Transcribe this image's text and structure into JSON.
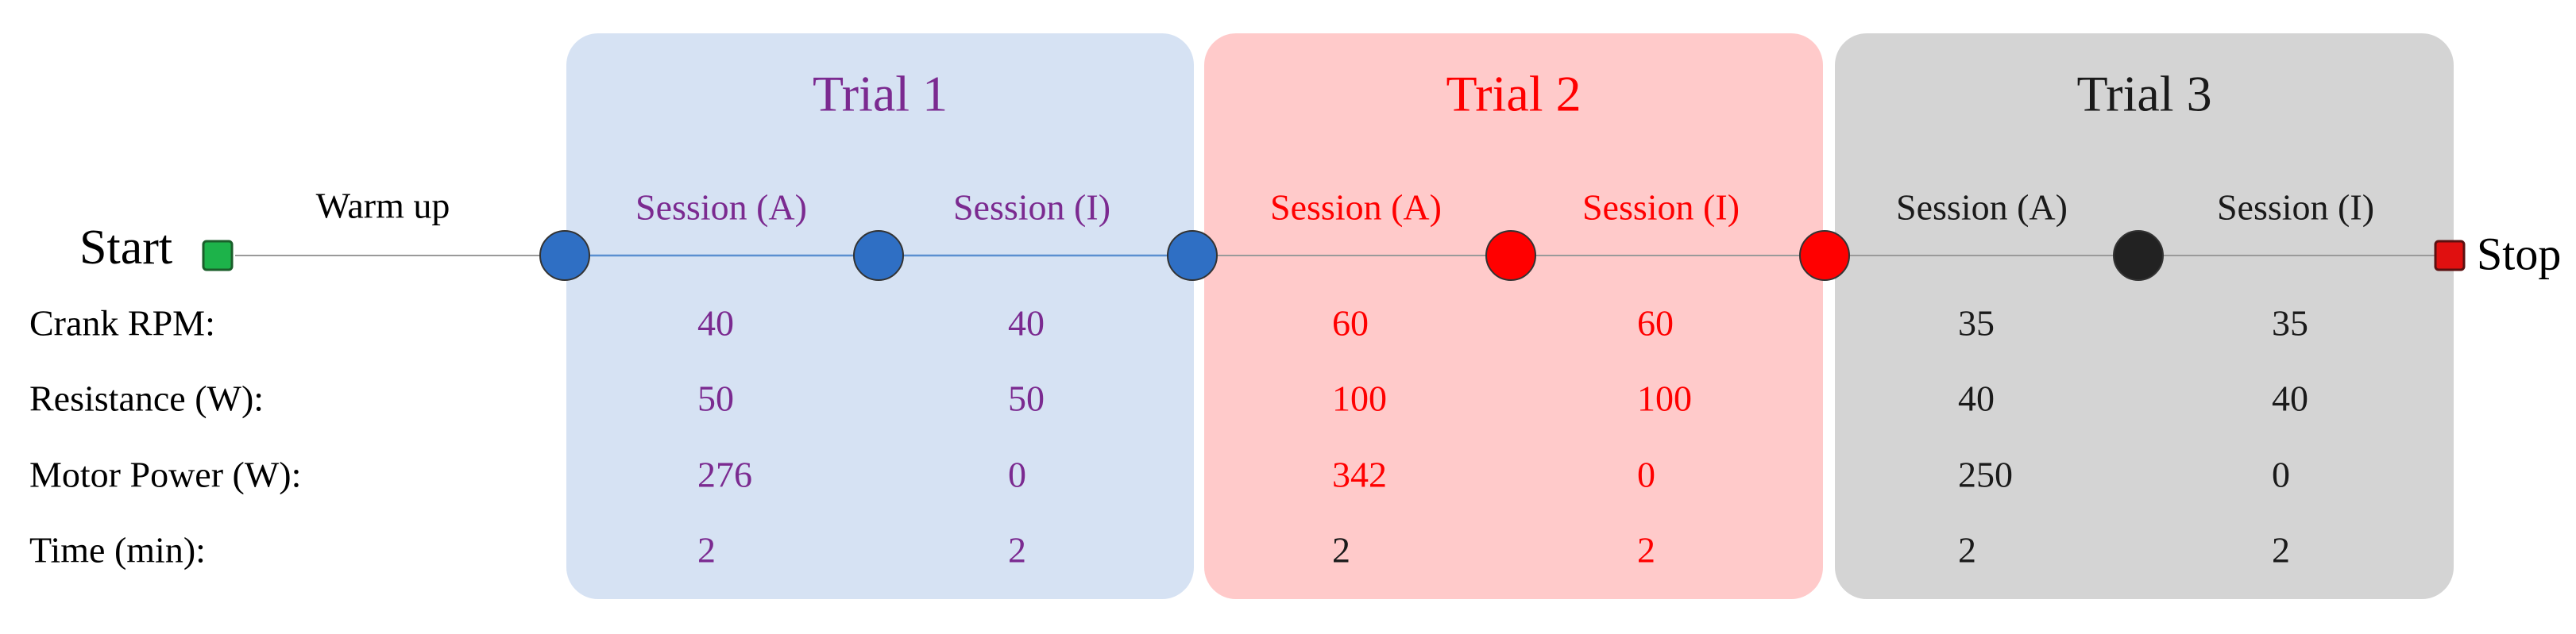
{
  "start": "Start",
  "stop": "Stop",
  "warm_up": "Warm up",
  "row_labels": [
    "Crank RPM:",
    "Resistance (W):",
    "Motor Power (W):",
    "Time (min):"
  ],
  "trials": [
    {
      "title": "Trial 1",
      "color": "#7b2a90",
      "box": "#d6e2f3",
      "dot": "#2f6fc4",
      "sessions": [
        {
          "name": "Session (A)",
          "values": [
            40,
            50,
            276,
            2
          ]
        },
        {
          "name": "Session (I)",
          "values": [
            40,
            50,
            0,
            2
          ]
        }
      ]
    },
    {
      "title": "Trial 2",
      "color": "#ff0000",
      "box": "#ffcaca",
      "dot": "#ff0000",
      "sessions": [
        {
          "name": "Session (A)",
          "values": [
            60,
            100,
            342,
            2
          ]
        },
        {
          "name": "Session (I)",
          "values": [
            60,
            100,
            0,
            2
          ]
        }
      ]
    },
    {
      "title": "Trial 3",
      "color": "#1a1a1a",
      "box": "#d4d4d4",
      "dot": "#222222",
      "sessions": [
        {
          "name": "Session (A)",
          "values": [
            35,
            40,
            250,
            2
          ]
        },
        {
          "name": "Session (I)",
          "values": [
            35,
            40,
            0,
            2
          ]
        }
      ]
    }
  ]
}
